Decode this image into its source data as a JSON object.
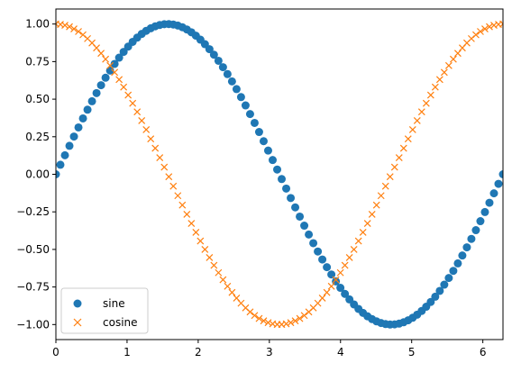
{
  "chart_data": {
    "type": "scatter",
    "title": "",
    "xlabel": "",
    "ylabel": "",
    "xlim": [
      0,
      6.2832
    ],
    "ylim": [
      -1.1,
      1.1
    ],
    "x_ticks": [
      0,
      1,
      2,
      3,
      4,
      5,
      6
    ],
    "x_tick_labels": [
      "0",
      "1",
      "2",
      "3",
      "4",
      "5",
      "6"
    ],
    "y_ticks": [
      1.0,
      0.75,
      0.5,
      0.25,
      0.0,
      -0.25,
      -0.5,
      -0.75,
      -1.0
    ],
    "y_tick_labels": [
      "1.00",
      "0.75",
      "0.50",
      "0.25",
      "0.00",
      "−0.25",
      "−0.50",
      "−0.75",
      "−1.00"
    ],
    "grid": false,
    "legend_position": "lower-left",
    "x": [
      0.0,
      0.0635,
      0.1269,
      0.1904,
      0.2539,
      0.3173,
      0.3808,
      0.4443,
      0.5077,
      0.5712,
      0.6347,
      0.6981,
      0.7616,
      0.8251,
      0.8885,
      0.952,
      1.0155,
      1.0789,
      1.1424,
      1.2059,
      1.2693,
      1.3328,
      1.3963,
      1.4597,
      1.5232,
      1.5867,
      1.6501,
      1.7136,
      1.7771,
      1.8405,
      1.904,
      1.9675,
      2.0309,
      2.0944,
      2.1579,
      2.2213,
      2.2848,
      2.3483,
      2.4117,
      2.4752,
      2.5387,
      2.6021,
      2.6656,
      2.7291,
      2.7925,
      2.856,
      2.9195,
      2.9829,
      3.0464,
      3.1099,
      3.1733,
      3.2368,
      3.3003,
      3.3637,
      3.4272,
      3.4907,
      3.5541,
      3.6176,
      3.6811,
      3.7445,
      3.808,
      3.8715,
      3.9349,
      3.9984,
      4.0619,
      4.1253,
      4.1888,
      4.2523,
      4.3157,
      4.3792,
      4.4427,
      4.5061,
      4.5696,
      4.6331,
      4.6965,
      4.76,
      4.8235,
      4.8869,
      4.9504,
      5.0139,
      5.0773,
      5.1408,
      5.2043,
      5.2677,
      5.3312,
      5.3947,
      5.4581,
      5.5216,
      5.5851,
      5.6485,
      5.712,
      5.7755,
      5.8389,
      5.9024,
      5.9659,
      6.0293,
      6.0928,
      6.1563,
      6.2197,
      6.2832
    ],
    "series": [
      {
        "name": "sine",
        "marker": "circle",
        "color": "#1f77b4",
        "values": [
          0.0,
          0.0634,
          0.1266,
          0.1893,
          0.2511,
          0.312,
          0.3717,
          0.4298,
          0.4862,
          0.5406,
          0.5929,
          0.6428,
          0.6901,
          0.7346,
          0.7761,
          0.8146,
          0.8497,
          0.8815,
          0.9096,
          0.9341,
          0.9549,
          0.9718,
          0.9848,
          0.9938,
          0.9989,
          0.9999,
          0.9969,
          0.9898,
          0.9788,
          0.9638,
          0.945,
          0.9224,
          0.896,
          0.866,
          0.8326,
          0.7958,
          0.7557,
          0.7127,
          0.6668,
          0.6182,
          0.5671,
          0.5137,
          0.4582,
          0.4009,
          0.342,
          0.2817,
          0.2203,
          0.158,
          0.0951,
          0.0317,
          -0.0317,
          -0.0951,
          -0.158,
          -0.2203,
          -0.2817,
          -0.342,
          -0.4009,
          -0.4582,
          -0.5137,
          -0.5671,
          -0.6182,
          -0.6668,
          -0.7127,
          -0.7557,
          -0.7958,
          -0.8326,
          -0.866,
          -0.896,
          -0.9224,
          -0.945,
          -0.9638,
          -0.9788,
          -0.9898,
          -0.9969,
          -0.9999,
          -0.9989,
          -0.9938,
          -0.9848,
          -0.9718,
          -0.9549,
          -0.9341,
          -0.9096,
          -0.8815,
          -0.8497,
          -0.8146,
          -0.7761,
          -0.7346,
          -0.6901,
          -0.6428,
          -0.5929,
          -0.5406,
          -0.4862,
          -0.4298,
          -0.3717,
          -0.312,
          -0.2511,
          -0.1893,
          -0.1266,
          -0.0634,
          0.0
        ]
      },
      {
        "name": "cosine",
        "marker": "x",
        "color": "#ff7f0e",
        "values": [
          1.0,
          0.998,
          0.992,
          0.9819,
          0.9679,
          0.9501,
          0.9284,
          0.9029,
          0.8738,
          0.8413,
          0.8053,
          0.766,
          0.7237,
          0.6785,
          0.6306,
          0.5801,
          0.5272,
          0.4723,
          0.4154,
          0.3569,
          0.2969,
          0.2358,
          0.1736,
          0.1108,
          0.0476,
          -0.0159,
          -0.0792,
          -0.1423,
          -0.2048,
          -0.2665,
          -0.3271,
          -0.3863,
          -0.4441,
          -0.5,
          -0.5539,
          -0.6056,
          -0.6549,
          -0.7015,
          -0.7453,
          -0.7861,
          -0.8237,
          -0.858,
          -0.8888,
          -0.9161,
          -0.9397,
          -0.9595,
          -0.9754,
          -0.9874,
          -0.9955,
          -0.9995,
          -0.9995,
          -0.9955,
          -0.9874,
          -0.9754,
          -0.9595,
          -0.9397,
          -0.9161,
          -0.8888,
          -0.858,
          -0.8237,
          -0.7861,
          -0.7453,
          -0.7015,
          -0.6549,
          -0.6056,
          -0.5539,
          -0.5,
          -0.4441,
          -0.3863,
          -0.3271,
          -0.2665,
          -0.2048,
          -0.1423,
          -0.0792,
          -0.0159,
          0.0476,
          0.1108,
          0.1736,
          0.2358,
          0.2969,
          0.3569,
          0.4154,
          0.4723,
          0.5272,
          0.5801,
          0.6306,
          0.6785,
          0.7237,
          0.766,
          0.8053,
          0.8413,
          0.8738,
          0.9029,
          0.9284,
          0.9501,
          0.9679,
          0.9819,
          0.992,
          0.998,
          1.0
        ]
      }
    ]
  }
}
